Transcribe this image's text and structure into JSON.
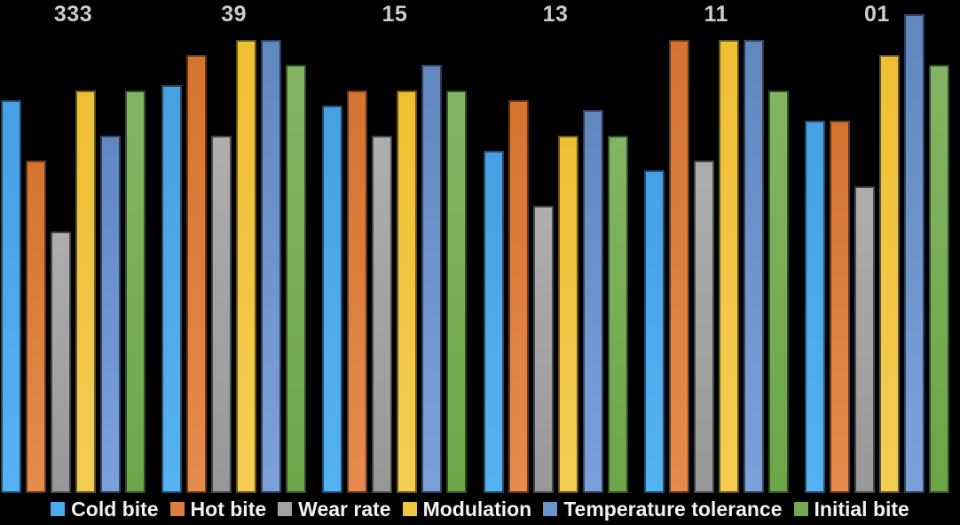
{
  "chart_data": {
    "type": "bar",
    "title": "",
    "background": "#000000",
    "grid": false,
    "ylim": [
      0,
      10
    ],
    "legend_position": "bottom",
    "category_label_color": "#CDCDCD",
    "legend_text_color": "#F2F2F2",
    "categories": [
      "333",
      "39",
      "15",
      "13",
      "11",
      "01"
    ],
    "series": [
      {
        "name": "Cold bite",
        "color": "#4BA9EC",
        "gradient_top": "#45A0E4",
        "gradient_bottom": "#55B2F2",
        "values": [
          7.8,
          8.1,
          7.7,
          6.8,
          6.4,
          7.4
        ]
      },
      {
        "name": "Hot bite",
        "color": "#DD7D3B",
        "gradient_top": "#D5732F",
        "gradient_bottom": "#E68A4D",
        "values": [
          6.6,
          8.7,
          8.0,
          7.8,
          9.0,
          7.4
        ]
      },
      {
        "name": "Wear rate",
        "color": "#A2A2A3",
        "gradient_top": "#ADADAD",
        "gradient_bottom": "#989899",
        "values": [
          5.2,
          7.1,
          7.1,
          5.7,
          6.6,
          6.1
        ]
      },
      {
        "name": "Modulation",
        "color": "#F1C53F",
        "gradient_top": "#EEBF33",
        "gradient_bottom": "#F4CC50",
        "values": [
          8.0,
          9.0,
          8.0,
          7.1,
          9.0,
          8.7
        ]
      },
      {
        "name": "Temperature tolerance",
        "color": "#6C92CC",
        "gradient_top": "#6287BE",
        "gradient_bottom": "#7CA0DA",
        "values": [
          7.1,
          9.0,
          8.5,
          7.6,
          9.0,
          9.5
        ]
      },
      {
        "name": "Initial bite",
        "color": "#72AB4F",
        "gradient_top": "#82B563",
        "gradient_bottom": "#6CA647",
        "values": [
          8.0,
          8.5,
          8.0,
          7.1,
          8.0,
          8.5
        ]
      }
    ]
  }
}
